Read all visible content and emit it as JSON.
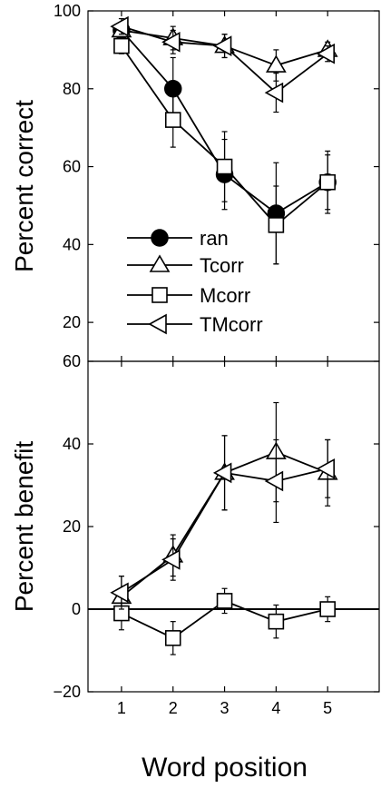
{
  "chart_data": [
    {
      "type": "line",
      "ylabel": "Percent correct",
      "xlabel": "",
      "x": [
        1,
        2,
        3,
        4,
        5
      ],
      "xlim": [
        0.35,
        6
      ],
      "ylim": [
        10,
        100
      ],
      "yticks": [
        20,
        40,
        60,
        80,
        100
      ],
      "ytick_labels": [
        "20",
        "40",
        "60",
        "80",
        "100"
      ],
      "legend": "inside-left",
      "grid": false,
      "series": [
        {
          "name": "ran",
          "marker": "filled-circle",
          "values": [
            95,
            80,
            58,
            48,
            56
          ],
          "errors": [
            2,
            8,
            9,
            13,
            8
          ]
        },
        {
          "name": "Tcorr",
          "marker": "triangle-up",
          "values": [
            95,
            93,
            91,
            86,
            90
          ],
          "errors": [
            2,
            3,
            3,
            4,
            2
          ]
        },
        {
          "name": "Mcorr",
          "marker": "square",
          "values": [
            91,
            72,
            60,
            45,
            56
          ],
          "errors": [
            2,
            7,
            9,
            10,
            7
          ]
        },
        {
          "name": "TMcorr",
          "marker": "triangle-left",
          "values": [
            96,
            92,
            91,
            79,
            89
          ],
          "errors": [
            2,
            3,
            3,
            5,
            2
          ]
        }
      ]
    },
    {
      "type": "line",
      "ylabel": "Percent benefit",
      "xlabel": "Word position",
      "x": [
        1,
        2,
        3,
        4,
        5
      ],
      "xticks": [
        "1",
        "2",
        "3",
        "4",
        "5"
      ],
      "xlim": [
        0.35,
        6
      ],
      "ylim": [
        -20,
        60
      ],
      "yticks": [
        -20,
        0,
        20,
        40,
        60
      ],
      "ytick_labels": [
        "−20",
        "0",
        "20",
        "40",
        "60"
      ],
      "zero_line": 0,
      "grid": false,
      "series": [
        {
          "name": "Tcorr",
          "marker": "triangle-up",
          "values": [
            3,
            13,
            33,
            38,
            33
          ],
          "errors": [
            5,
            5,
            9,
            12,
            8
          ]
        },
        {
          "name": "Mcorr",
          "marker": "square",
          "values": [
            -1,
            -7,
            2,
            -3,
            0
          ],
          "errors": [
            4,
            4,
            3,
            4,
            3
          ]
        },
        {
          "name": "TMcorr",
          "marker": "triangle-left",
          "values": [
            4,
            12,
            33,
            31,
            34
          ],
          "errors": [
            4,
            5,
            9,
            10,
            7
          ]
        }
      ]
    }
  ]
}
